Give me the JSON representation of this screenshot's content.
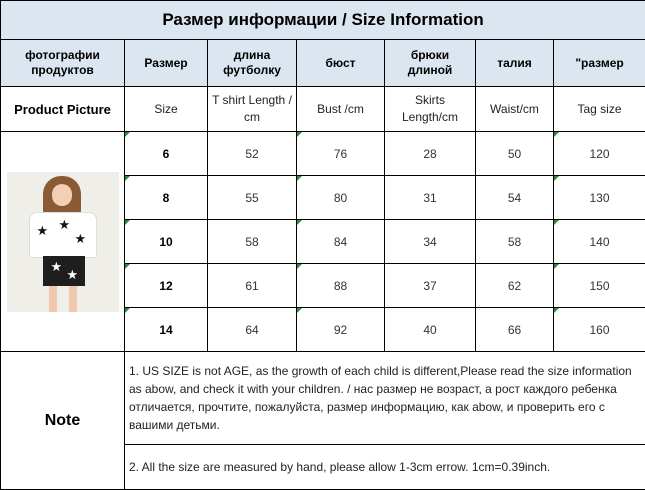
{
  "title": "Размер информации / Size Information",
  "headers_ru": [
    "фотографии продуктов",
    "Размер",
    "длина футболку",
    "бюст",
    "брюки длиной",
    "талия",
    "\"размер"
  ],
  "headers_en": [
    "Product Picture",
    "Size",
    "T shirt Length / cm",
    "Bust  /cm",
    "Skirts Length/cm",
    "Waist/cm",
    "Tag size"
  ],
  "rows": [
    {
      "size": "6",
      "tshirt": "52",
      "bust": "76",
      "skirt": "28",
      "waist": "50",
      "tag": "120"
    },
    {
      "size": "8",
      "tshirt": "55",
      "bust": "80",
      "skirt": "31",
      "waist": "54",
      "tag": "130"
    },
    {
      "size": "10",
      "tshirt": "58",
      "bust": "84",
      "skirt": "34",
      "waist": "58",
      "tag": "140"
    },
    {
      "size": "12",
      "tshirt": "61",
      "bust": "88",
      "skirt": "37",
      "waist": "62",
      "tag": "150"
    },
    {
      "size": "14",
      "tshirt": "64",
      "bust": "92",
      "skirt": "40",
      "waist": "66",
      "tag": "160"
    }
  ],
  "note": {
    "label": "Note",
    "line1": "1. US SIZE is not AGE, as the growth of each child is different,Please read the size information as abow,   and check it with your children.  /   нас размер не возраст, а рост каждого ребенка отличается, прочтите, пожалуйста, размер информацию, как abow, и проверить его с вашими детьми.",
    "line2": "2. All the size are measured by hand, please allow 1-3cm errow. 1cm=0.39inch."
  },
  "colors": {
    "header_bg": "#dce6f1",
    "corner_mark": "#2e8b3d"
  },
  "icons": {
    "product_photo": "girl-star-outfit-photo",
    "corner_mark": "green-triangle-marker"
  }
}
